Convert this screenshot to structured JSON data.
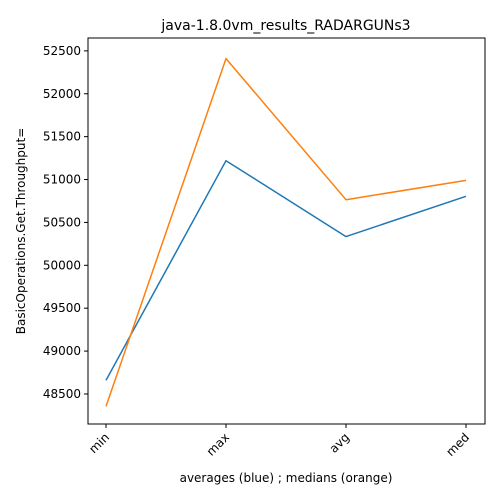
{
  "chart_data": {
    "type": "line",
    "title": "java-1.8.0vm_results_RADARGUNs3",
    "xlabel": "averages (blue) ; medians (orange)",
    "ylabel": "BasicOperations.Get.Throughput=",
    "categories": [
      "min",
      "max",
      "avg",
      "med"
    ],
    "ylim": [
      48150,
      52650
    ],
    "yticks": [
      48500,
      49000,
      49500,
      50000,
      50500,
      51000,
      51500,
      52000,
      52500
    ],
    "grid": false,
    "legend": "none",
    "series": [
      {
        "color": "#1f77b4",
        "values": [
          48660,
          51220,
          50335,
          50805
        ]
      },
      {
        "color": "#ff7f0e",
        "values": [
          48355,
          52410,
          50765,
          50990
        ]
      }
    ]
  }
}
